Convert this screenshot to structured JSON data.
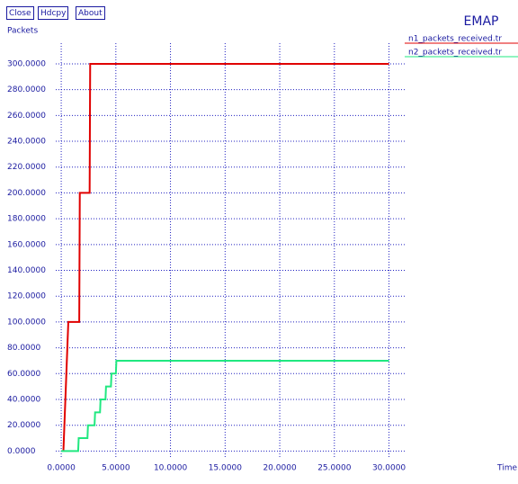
{
  "buttons": [
    "Close",
    "Hdcpy",
    "About"
  ],
  "chart_data": {
    "type": "line",
    "title": "EMAP",
    "y_label": "Packets",
    "x_label": "Time",
    "xlim": [
      -0.5,
      31.6
    ],
    "ylim": [
      -6,
      316
    ],
    "grid": true,
    "xticks": [
      {
        "value": 0,
        "label": "0.0000"
      },
      {
        "value": 5,
        "label": "5.0000"
      },
      {
        "value": 10,
        "label": "10.0000"
      },
      {
        "value": 15,
        "label": "15.0000"
      },
      {
        "value": 20,
        "label": "20.0000"
      },
      {
        "value": 25,
        "label": "25.0000"
      },
      {
        "value": 30,
        "label": "30.0000"
      }
    ],
    "yticks": [
      {
        "value": 0,
        "label": "0.0000"
      },
      {
        "value": 20,
        "label": "20.0000"
      },
      {
        "value": 40,
        "label": "40.0000"
      },
      {
        "value": 60,
        "label": "60.0000"
      },
      {
        "value": 80,
        "label": "80.0000"
      },
      {
        "value": 100,
        "label": "100.0000"
      },
      {
        "value": 120,
        "label": "120.0000"
      },
      {
        "value": 140,
        "label": "140.0000"
      },
      {
        "value": 160,
        "label": "160.0000"
      },
      {
        "value": 180,
        "label": "180.0000"
      },
      {
        "value": 200,
        "label": "200.0000"
      },
      {
        "value": 220,
        "label": "220.0000"
      },
      {
        "value": 240,
        "label": "240.0000"
      },
      {
        "value": 260,
        "label": "260.0000"
      },
      {
        "value": 280,
        "label": "280.0000"
      },
      {
        "value": 300,
        "label": "300.0000"
      }
    ],
    "series": [
      {
        "name": "n1_packets_received.tr",
        "color": "#e00000",
        "x": [
          0.2,
          0.65,
          1.65,
          1.7,
          2.6,
          2.65,
          30
        ],
        "values": [
          0,
          100,
          100,
          200,
          200,
          300,
          300
        ]
      },
      {
        "name": "n2_packets_received.tr",
        "color": "#20e880",
        "x": [
          0,
          1.55,
          1.6,
          2.4,
          2.45,
          3.05,
          3.1,
          3.55,
          3.6,
          4.05,
          4.1,
          4.55,
          4.6,
          5.0,
          5.05,
          30
        ],
        "values": [
          0,
          0,
          10,
          10,
          20,
          20,
          30,
          30,
          40,
          40,
          50,
          50,
          60,
          60,
          70,
          70
        ]
      }
    ]
  }
}
